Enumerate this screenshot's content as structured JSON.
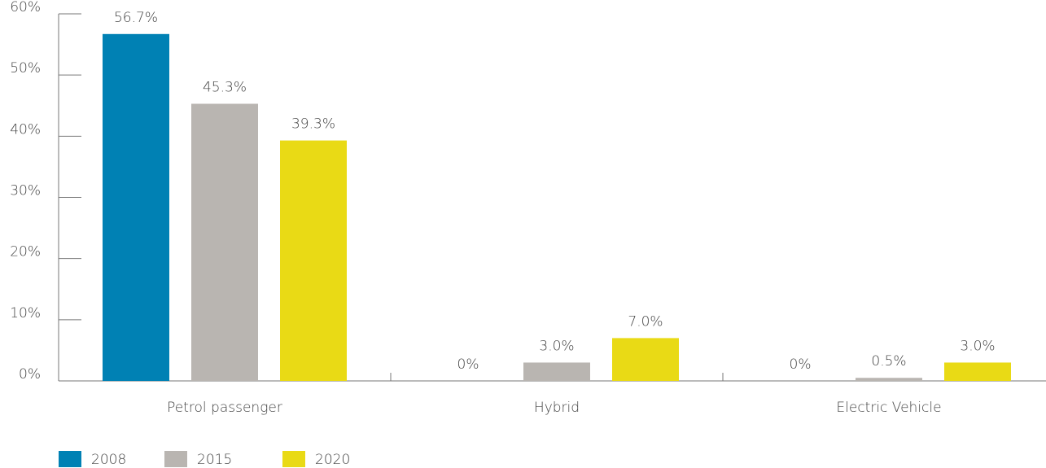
{
  "chart_data": {
    "type": "bar",
    "categories": [
      "Petrol passenger",
      "Hybrid",
      "Electric Vehicle"
    ],
    "series": [
      {
        "name": "2008",
        "color": "#0081b4",
        "values": [
          56.7,
          0,
          0
        ],
        "value_labels": [
          "56.7%",
          "0%",
          "0%"
        ]
      },
      {
        "name": "2015",
        "color": "#b9b5b1",
        "values": [
          45.3,
          3.0,
          0.5
        ],
        "value_labels": [
          "45.3%",
          "3.0%",
          "0.5%"
        ]
      },
      {
        "name": "2020",
        "color": "#e9da15",
        "values": [
          39.3,
          7.0,
          3.0
        ],
        "value_labels": [
          "39.3%",
          "7.0%",
          "3.0%"
        ]
      }
    ],
    "ylim": [
      0,
      60
    ],
    "yticks": [
      {
        "value": 0,
        "label": "0%"
      },
      {
        "value": 10,
        "label": "10%"
      },
      {
        "value": 20,
        "label": "20%"
      },
      {
        "value": 30,
        "label": "30%"
      },
      {
        "value": 40,
        "label": "40%"
      },
      {
        "value": 50,
        "label": "50%"
      },
      {
        "value": 60,
        "label": "60%"
      }
    ],
    "legend": "bottom-left"
  }
}
